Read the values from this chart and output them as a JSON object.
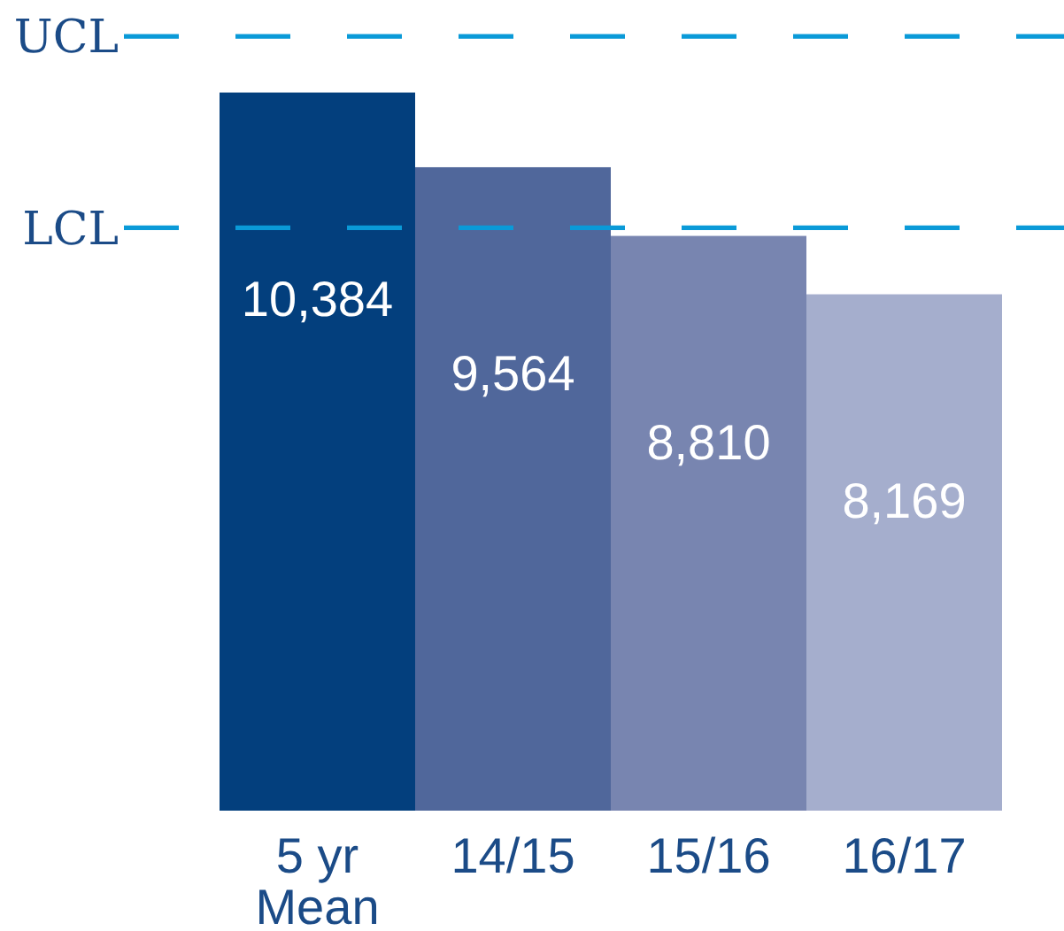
{
  "chart_data": {
    "type": "bar",
    "categories": [
      "5 yr\nMean",
      "14/15",
      "15/16",
      "16/17"
    ],
    "values": [
      10384,
      9564,
      8810,
      8169
    ],
    "colors": [
      "#033f7d",
      "#50679b",
      "#7885b0",
      "#a5aecd"
    ],
    "value_labels": [
      "10,384",
      "9,564",
      "8,810",
      "8,169"
    ],
    "ylim": [
      2500,
      11400
    ],
    "ref_lines": [
      {
        "axis": "y",
        "value": 11000,
        "label": "UCL",
        "color": "#0a9ad8",
        "line_style": "dashed"
      },
      {
        "axis": "y",
        "value": 8900,
        "label": "LCL",
        "color": "#0a9ad8",
        "line_style": "dashed"
      }
    ]
  }
}
